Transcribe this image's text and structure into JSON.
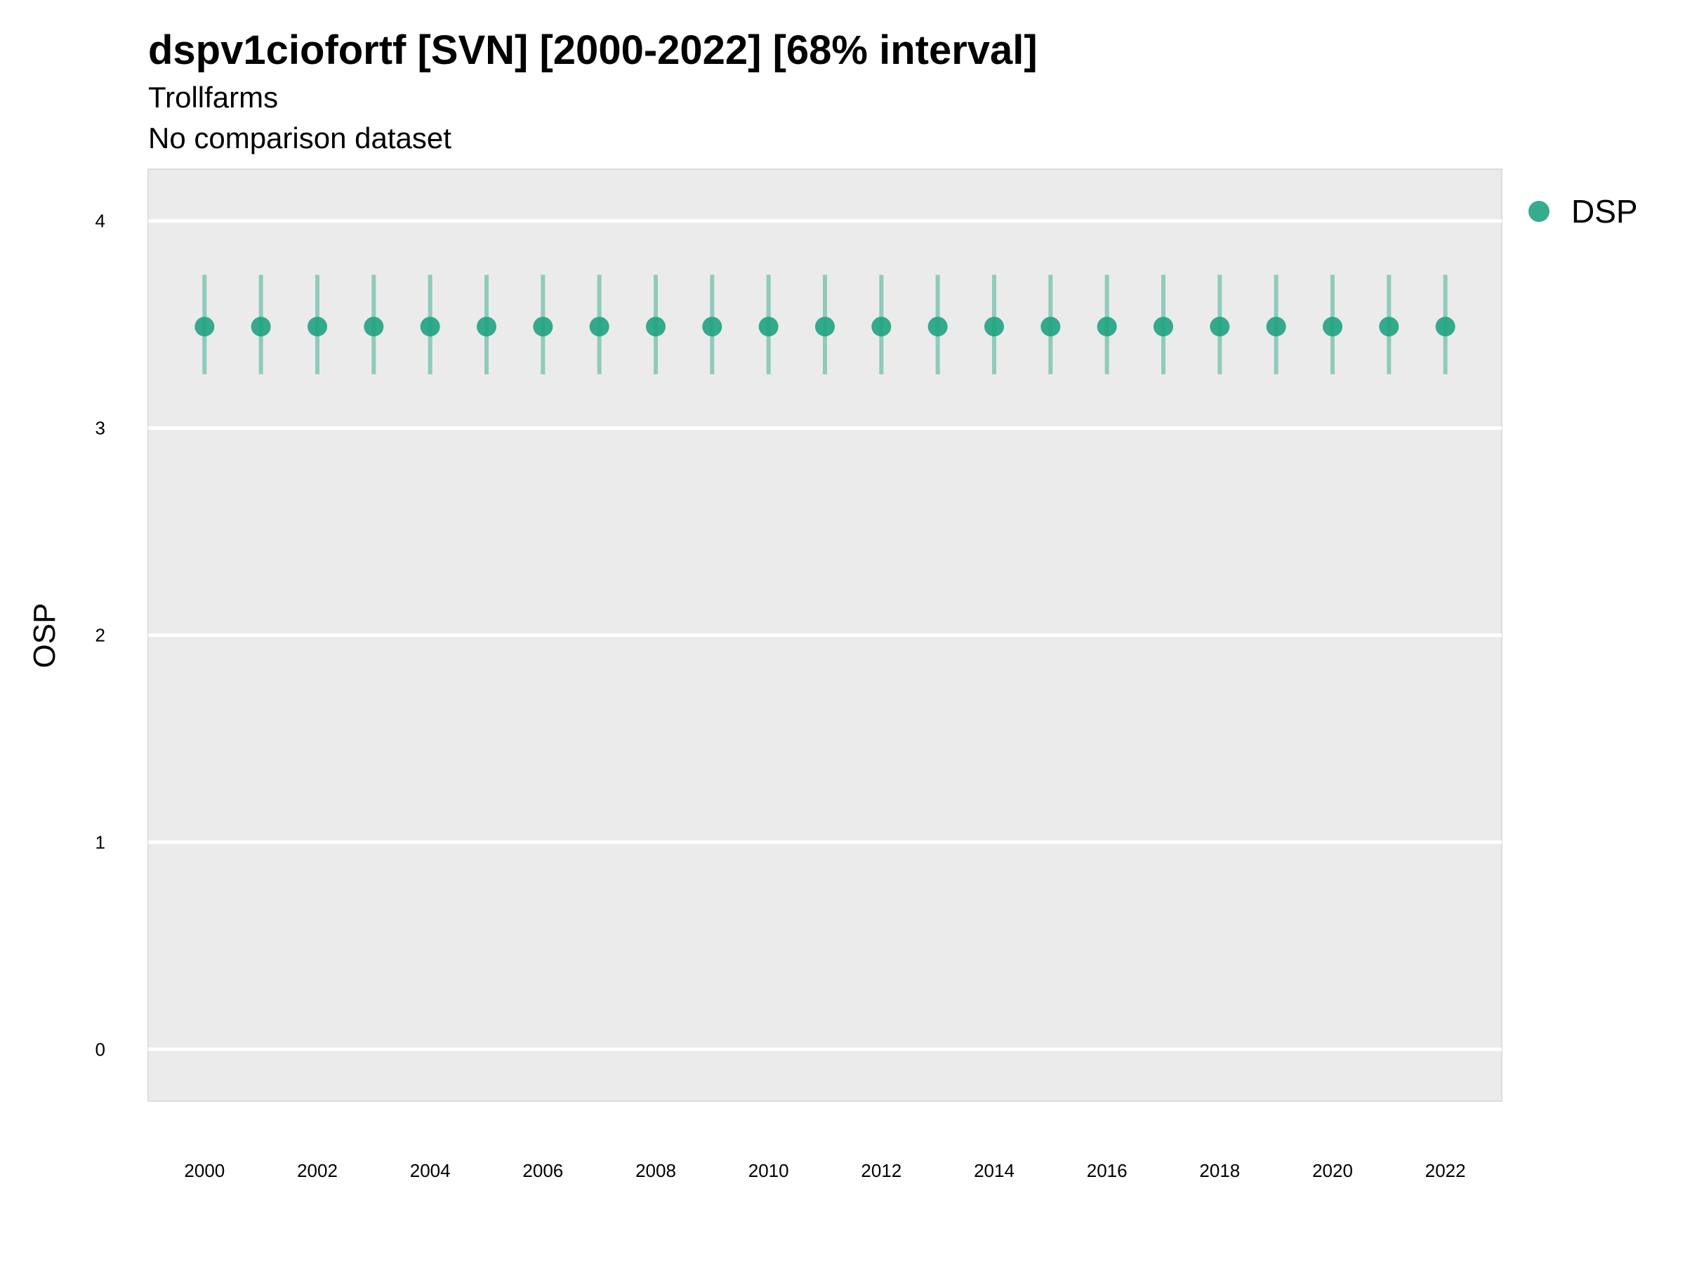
{
  "chart_data": {
    "type": "scatter",
    "title": "dspv1ciofortf [SVN] [2000-2022] [68% interval]",
    "subtitle": "Trollfarms",
    "caption": "No comparison dataset",
    "ylabel": "OSP",
    "xlabel": "",
    "x": [
      2000,
      2001,
      2002,
      2003,
      2004,
      2005,
      2006,
      2007,
      2008,
      2009,
      2010,
      2011,
      2012,
      2013,
      2014,
      2015,
      2016,
      2017,
      2018,
      2019,
      2020,
      2021,
      2022
    ],
    "x_tick_labels": [
      "2000",
      "2002",
      "2004",
      "2006",
      "2008",
      "2010",
      "2012",
      "2014",
      "2016",
      "2018",
      "2020",
      "2022"
    ],
    "y_tick_labels": [
      "0",
      "1",
      "2",
      "3",
      "4"
    ],
    "xlim": [
      1999,
      2023
    ],
    "ylim": [
      -0.25,
      4.25
    ],
    "grid": true,
    "legend_position": "right",
    "series": [
      {
        "name": "DSP",
        "color": "#1fa381",
        "values": [
          3.49,
          3.49,
          3.49,
          3.49,
          3.49,
          3.49,
          3.49,
          3.49,
          3.49,
          3.49,
          3.49,
          3.49,
          3.49,
          3.49,
          3.49,
          3.49,
          3.49,
          3.49,
          3.49,
          3.49,
          3.49,
          3.49,
          3.49
        ],
        "lower": [
          3.26,
          3.26,
          3.26,
          3.26,
          3.26,
          3.26,
          3.26,
          3.26,
          3.26,
          3.26,
          3.26,
          3.26,
          3.26,
          3.26,
          3.26,
          3.26,
          3.26,
          3.26,
          3.26,
          3.26,
          3.26,
          3.26,
          3.26
        ],
        "upper": [
          3.74,
          3.74,
          3.74,
          3.74,
          3.74,
          3.74,
          3.74,
          3.74,
          3.74,
          3.74,
          3.74,
          3.74,
          3.74,
          3.74,
          3.74,
          3.74,
          3.74,
          3.74,
          3.74,
          3.74,
          3.74,
          3.74,
          3.74
        ]
      }
    ]
  }
}
